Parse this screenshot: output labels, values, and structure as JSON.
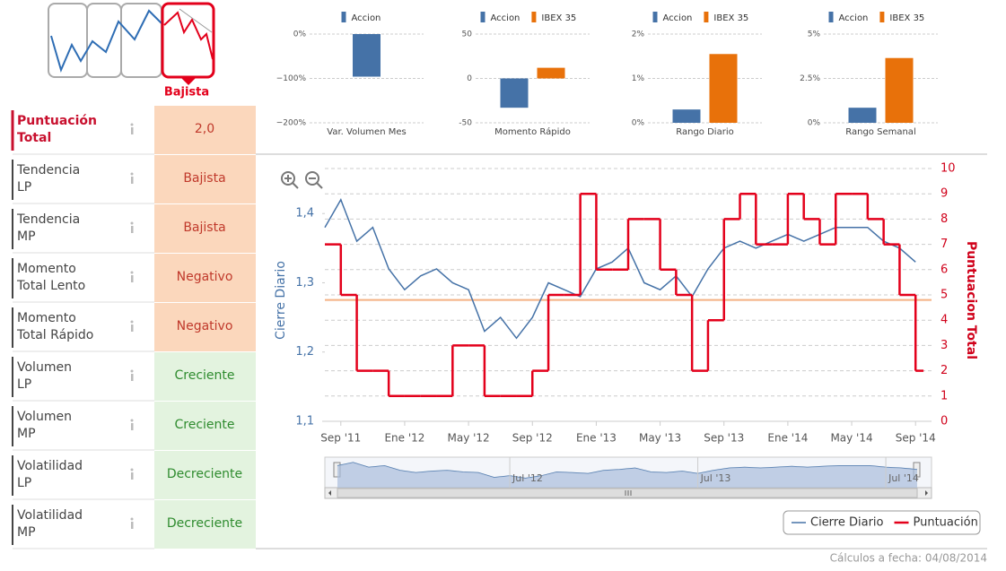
{
  "trend": {
    "label": "Bajista"
  },
  "scores": {
    "rows": [
      {
        "label": [
          "Puntuación",
          "Total"
        ],
        "value": "2,0",
        "label_color": "#c8102e",
        "bg": "#fbd7bc",
        "fg": "#c0392b"
      },
      {
        "label": [
          "Tendencia",
          "LP"
        ],
        "value": "Bajista",
        "label_color": "#444444",
        "bg": "#fbd7bc",
        "fg": "#c0392b"
      },
      {
        "label": [
          "Tendencia",
          "MP"
        ],
        "value": "Bajista",
        "label_color": "#444444",
        "bg": "#fbd7bc",
        "fg": "#c0392b"
      },
      {
        "label": [
          "Momento",
          "Total Lento"
        ],
        "value": "Negativo",
        "label_color": "#444444",
        "bg": "#fbd7bc",
        "fg": "#c0392b"
      },
      {
        "label": [
          "Momento",
          "Total Rápido"
        ],
        "value": "Negativo",
        "label_color": "#444444",
        "bg": "#fbd7bc",
        "fg": "#c0392b"
      },
      {
        "label": [
          "Volumen",
          "LP"
        ],
        "value": "Creciente",
        "label_color": "#444444",
        "bg": "#e3f3df",
        "fg": "#2e8b2e"
      },
      {
        "label": [
          "Volumen",
          "MP"
        ],
        "value": "Creciente",
        "label_color": "#444444",
        "bg": "#e3f3df",
        "fg": "#2e8b2e"
      },
      {
        "label": [
          "Volatilidad",
          "LP"
        ],
        "value": "Decreciente",
        "label_color": "#444444",
        "bg": "#e3f3df",
        "fg": "#2e8b2e"
      },
      {
        "label": [
          "Volatilidad",
          "MP"
        ],
        "value": "Decreciente",
        "label_color": "#444444",
        "bg": "#e3f3df",
        "fg": "#2e8b2e"
      }
    ]
  },
  "chart_data": [
    {
      "type": "bar",
      "xlabel": "Var. Volumen Mes",
      "series": [
        {
          "name": "Accion",
          "color": "#4572a7",
          "values": [
            -96
          ]
        }
      ],
      "ylim": [
        -200,
        0
      ],
      "yticks": [
        {
          "value": 0,
          "label": "0%"
        },
        {
          "value": -100,
          "label": "−100%"
        },
        {
          "value": -200,
          "label": "−200%"
        }
      ],
      "grid": true
    },
    {
      "type": "bar",
      "xlabel": "Momento Rápido",
      "series": [
        {
          "name": "Accion",
          "color": "#4572a7",
          "values": [
            -33
          ]
        },
        {
          "name": "IBEX 35",
          "color": "#e8710a",
          "values": [
            12
          ]
        }
      ],
      "ylim": [
        -50,
        50
      ],
      "yticks": [
        50,
        0,
        -50
      ],
      "grid": true
    },
    {
      "type": "bar",
      "xlabel": "Rango Diario",
      "series": [
        {
          "name": "Accion",
          "color": "#4572a7",
          "values": [
            0.3
          ]
        },
        {
          "name": "IBEX 35",
          "color": "#e8710a",
          "values": [
            1.55
          ]
        }
      ],
      "ylim": [
        0,
        2
      ],
      "yticks": [
        {
          "value": 2,
          "label": "2%"
        },
        {
          "value": 1,
          "label": "1%"
        },
        {
          "value": 0,
          "label": "0%"
        }
      ],
      "grid": true
    },
    {
      "type": "bar",
      "xlabel": "Rango Semanal",
      "series": [
        {
          "name": "Accion",
          "color": "#4572a7",
          "values": [
            0.85
          ]
        },
        {
          "name": "IBEX 35",
          "color": "#e8710a",
          "values": [
            3.65
          ]
        }
      ],
      "ylim": [
        0,
        5
      ],
      "yticks": [
        {
          "value": 5,
          "label": "5%"
        },
        {
          "value": 2.5,
          "label": "2.5%"
        },
        {
          "value": 0,
          "label": "0%"
        }
      ],
      "grid": true
    },
    {
      "type": "line",
      "ylabel": "Cierre Diario",
      "y2label": "Puntuacion Total",
      "x": [
        "2011-08",
        "2011-09",
        "2011-10",
        "2011-11",
        "2011-12",
        "2012-01",
        "2012-02",
        "2012-03",
        "2012-04",
        "2012-05",
        "2012-06",
        "2012-07",
        "2012-08",
        "2012-09",
        "2012-10",
        "2012-11",
        "2012-12",
        "2013-01",
        "2013-02",
        "2013-03",
        "2013-04",
        "2013-05",
        "2013-06",
        "2013-07",
        "2013-08",
        "2013-09",
        "2013-10",
        "2013-11",
        "2013-12",
        "2014-01",
        "2014-02",
        "2014-03",
        "2014-04",
        "2014-05",
        "2014-06",
        "2014-07",
        "2014-08",
        "2014-09"
      ],
      "xlim": [
        "2011-08",
        "2014-10"
      ],
      "xticks": [
        {
          "value": "2011-09",
          "label": "Sep '11"
        },
        {
          "value": "2012-01",
          "label": "Ene '12"
        },
        {
          "value": "2012-05",
          "label": "May '12"
        },
        {
          "value": "2012-09",
          "label": "Sep '12"
        },
        {
          "value": "2013-01",
          "label": "Ene '13"
        },
        {
          "value": "2013-05",
          "label": "May '13"
        },
        {
          "value": "2013-09",
          "label": "Sep '13"
        },
        {
          "value": "2014-01",
          "label": "Ene '14"
        },
        {
          "value": "2014-05",
          "label": "May '14"
        },
        {
          "value": "2014-09",
          "label": "Sep '14"
        }
      ],
      "series": [
        {
          "name": "Cierre Diario",
          "color": "#4572a7",
          "values": [
            1.38,
            1.42,
            1.36,
            1.38,
            1.32,
            1.29,
            1.31,
            1.32,
            1.3,
            1.29,
            1.23,
            1.25,
            1.22,
            1.25,
            1.3,
            1.29,
            1.28,
            1.32,
            1.33,
            1.35,
            1.3,
            1.29,
            1.31,
            1.28,
            1.32,
            1.35,
            1.36,
            1.35,
            1.36,
            1.37,
            1.36,
            1.37,
            1.38,
            1.38,
            1.38,
            1.36,
            1.35,
            1.33
          ]
        },
        {
          "name": "Puntuación",
          "color": "#e3001b",
          "axis": "y2",
          "step": true,
          "values": [
            7,
            5,
            2,
            2,
            1,
            1,
            1,
            1,
            3,
            3,
            1,
            1,
            1,
            2,
            5,
            5,
            9,
            6,
            6,
            8,
            8,
            6,
            5,
            2,
            4,
            8,
            9,
            7,
            7,
            9,
            8,
            7,
            9,
            9,
            8,
            7,
            5,
            2
          ]
        }
      ],
      "ylim": [
        1.1,
        1.465
      ],
      "yticks": [
        {
          "value": 1.1,
          "label": "1,1"
        },
        {
          "value": 1.2,
          "label": "1,2"
        },
        {
          "value": 1.3,
          "label": "1,3"
        },
        {
          "value": 1.4,
          "label": "1,4"
        }
      ],
      "y2lim": [
        0,
        10
      ],
      "y2ticks": [
        0,
        1,
        2,
        3,
        4,
        5,
        6,
        7,
        8,
        9,
        10
      ],
      "grid": true,
      "plot_line": {
        "axis": "y2",
        "value": 4.8,
        "color": "#f4b183"
      },
      "navigator": {
        "ticks": [
          {
            "value": "2012-07",
            "label": "Jul '12"
          },
          {
            "value": "2013-07",
            "label": "Jul '13"
          },
          {
            "value": "2014-07",
            "label": "Jul '14"
          }
        ]
      }
    }
  ],
  "footer": "Cálculos a fecha: 04/08/2014"
}
